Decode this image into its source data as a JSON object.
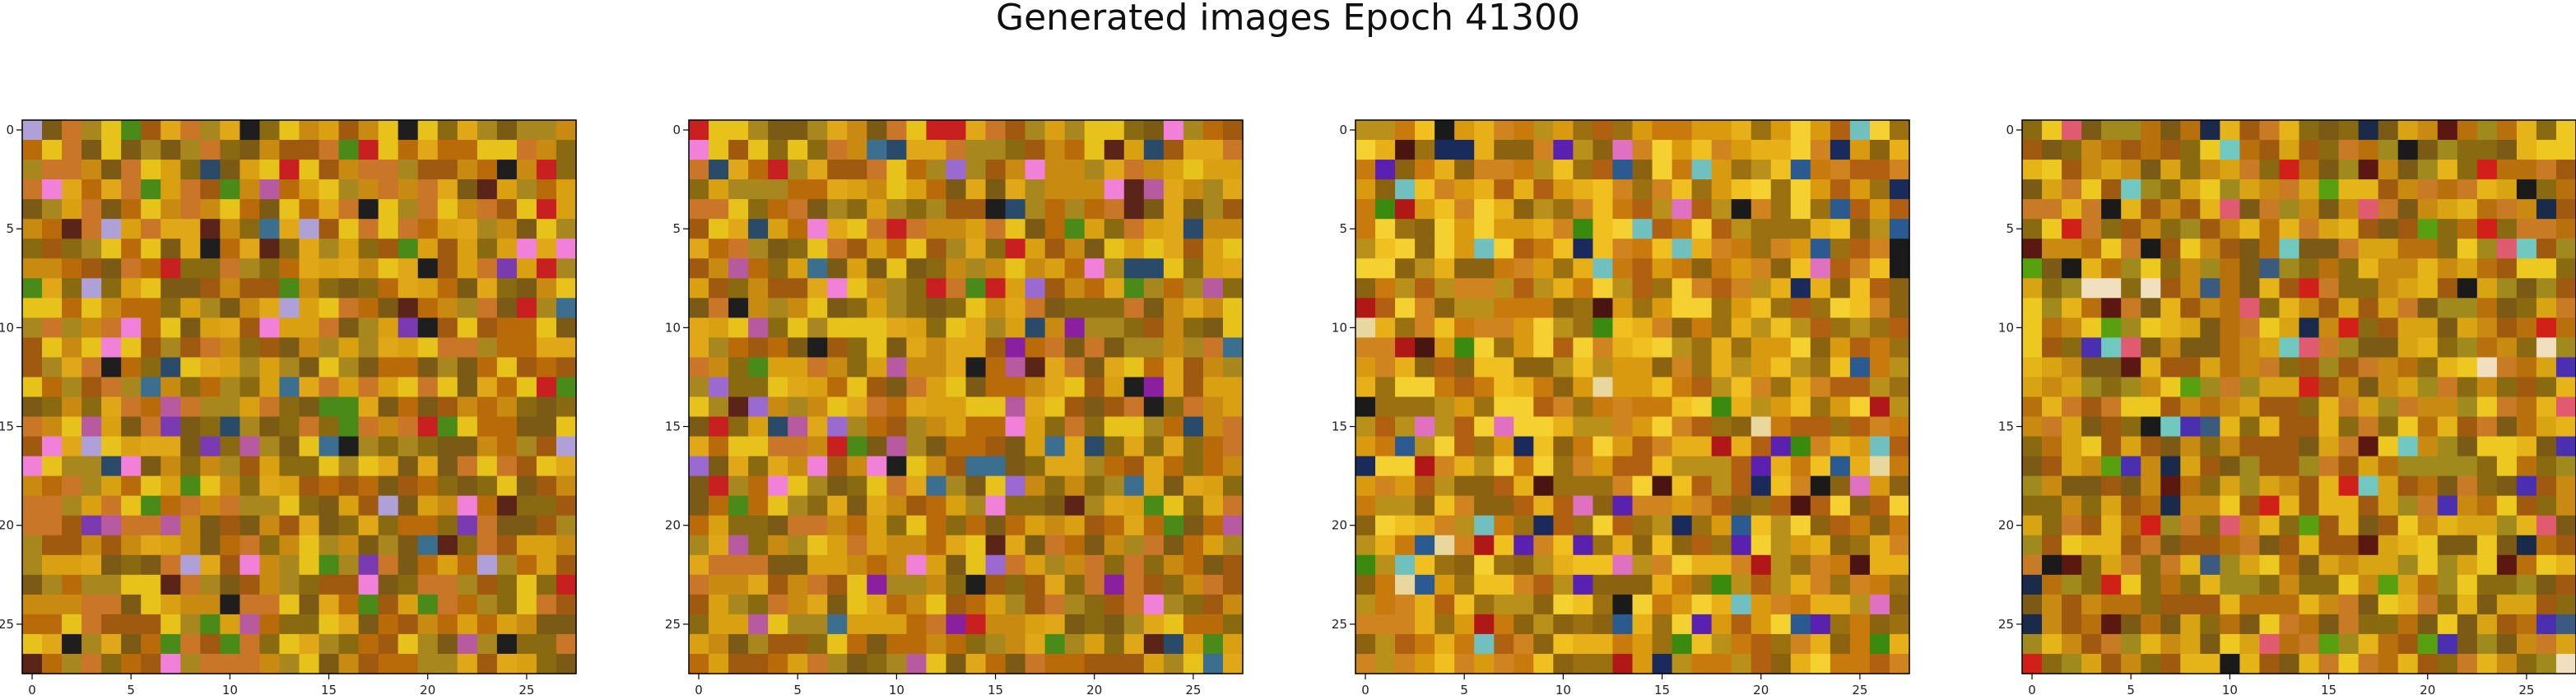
{
  "figure": {
    "title": "Generated images Epoch 41300"
  },
  "chart_data": [
    {
      "type": "heatmap",
      "grid": [
        28,
        28
      ],
      "xticks": [
        "0",
        "5",
        "10",
        "15",
        "20",
        "25"
      ],
      "yticks": [
        "0",
        "5",
        "10",
        "15",
        "20",
        "25"
      ],
      "palette": [
        "#c98a12",
        "#b96b0a",
        "#d9a012",
        "#a8881e",
        "#8a6a10",
        "#e0a818",
        "#c97628",
        "#7a5a14",
        "#e6c21a",
        "#a05a10"
      ],
      "accents": [
        "#1e1e1e",
        "#5a2418",
        "#c82020",
        "#7a3ab0",
        "#b85aa0",
        "#3c6e90",
        "#4a8a18",
        "#f080d8",
        "#2a4a6a",
        "#b0a0d8"
      ],
      "seed": 11
    },
    {
      "type": "heatmap",
      "grid": [
        28,
        28
      ],
      "xticks": [
        "0",
        "5",
        "10",
        "15",
        "20",
        "25"
      ],
      "yticks": [
        "0",
        "5",
        "10",
        "15",
        "20",
        "25"
      ],
      "palette": [
        "#c98a12",
        "#b96b0a",
        "#d9a012",
        "#a8881e",
        "#8a6a10",
        "#e0a818",
        "#c97628",
        "#7a5a14",
        "#e6c21a",
        "#a05a10"
      ],
      "accents": [
        "#1e1e1e",
        "#5a2418",
        "#c82020",
        "#8a20a0",
        "#b85aa0",
        "#3c6e90",
        "#4a8a18",
        "#f080d8",
        "#2a4a6a",
        "#9a6ad0"
      ],
      "seed": 12
    },
    {
      "type": "heatmap",
      "grid": [
        28,
        28
      ],
      "xticks": [
        "0",
        "5",
        "10",
        "15",
        "20",
        "25"
      ],
      "yticks": [
        "0",
        "5",
        "10",
        "15",
        "20",
        "25"
      ],
      "palette": [
        "#d99a10",
        "#c97a0c",
        "#e8b018",
        "#b8901a",
        "#9a7010",
        "#f0c020",
        "#d08420",
        "#8a6210",
        "#f4d030",
        "#b06010"
      ],
      "accents": [
        "#1a1a1a",
        "#4a1410",
        "#b01818",
        "#5a20b0",
        "#e070c0",
        "#2a5a90",
        "#3a8a10",
        "#e8d8a0",
        "#1a2a5a",
        "#70c0c0"
      ],
      "seed": 23
    },
    {
      "type": "heatmap",
      "grid": [
        28,
        28
      ],
      "xticks": [
        "0",
        "5",
        "10",
        "15",
        "20",
        "25"
      ],
      "yticks": [
        "0",
        "5",
        "10",
        "15",
        "20",
        "25"
      ],
      "palette": [
        "#c98a12",
        "#b8700c",
        "#d8a414",
        "#a08a1e",
        "#8a6a10",
        "#e4b418",
        "#c87a24",
        "#7a5a14",
        "#ecc820",
        "#a05a10"
      ],
      "accents": [
        "#1a1a1a",
        "#5a1810",
        "#d02018",
        "#4a30b0",
        "#e05a70",
        "#3a5a80",
        "#58a010",
        "#f0e0c0",
        "#1a2a4a",
        "#70c8c0"
      ],
      "seed": 34
    }
  ]
}
